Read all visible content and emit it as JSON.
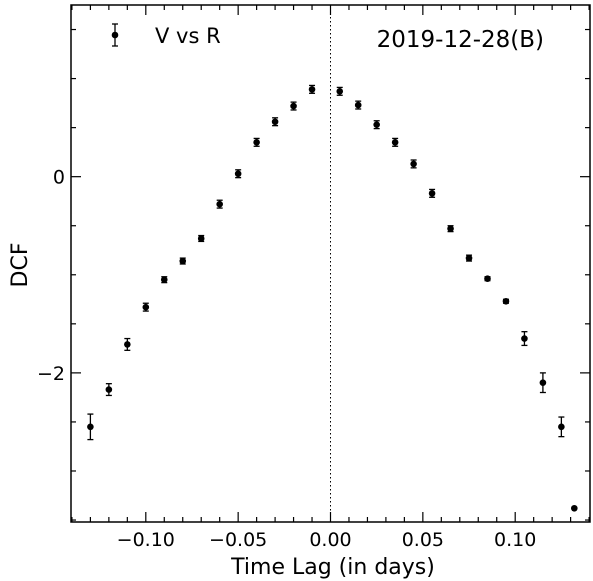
{
  "chart_data": {
    "type": "scatter",
    "xlabel": "Time Lag (in days)",
    "ylabel": "DCF",
    "annotation": "2019-12-28(B)",
    "legend_position": "top-left",
    "xlim": [
      -0.1405,
      0.1405
    ],
    "ylim": [
      -3.52,
      1.75
    ],
    "x_ticks": [
      -0.1,
      -0.05,
      0.0,
      0.05,
      0.1
    ],
    "x_tick_labels": [
      "−0.10",
      "−0.05",
      "0.00",
      "0.05",
      "0.10"
    ],
    "y_ticks": [
      -2,
      0
    ],
    "y_tick_labels": [
      "−2",
      "0"
    ],
    "reference_line_x": 0.0,
    "grid": false,
    "series": [
      {
        "name": "V vs R",
        "color": "#000000",
        "points": [
          {
            "x": -0.13,
            "y": -2.55,
            "err": 0.13
          },
          {
            "x": -0.12,
            "y": -2.17,
            "err": 0.06
          },
          {
            "x": -0.11,
            "y": -1.71,
            "err": 0.06
          },
          {
            "x": -0.1,
            "y": -1.33,
            "err": 0.04
          },
          {
            "x": -0.09,
            "y": -1.05,
            "err": 0.03
          },
          {
            "x": -0.08,
            "y": -0.86,
            "err": 0.03
          },
          {
            "x": -0.07,
            "y": -0.63,
            "err": 0.03
          },
          {
            "x": -0.06,
            "y": -0.28,
            "err": 0.04
          },
          {
            "x": -0.05,
            "y": 0.03,
            "err": 0.04
          },
          {
            "x": -0.04,
            "y": 0.35,
            "err": 0.04
          },
          {
            "x": -0.03,
            "y": 0.56,
            "err": 0.04
          },
          {
            "x": -0.02,
            "y": 0.72,
            "err": 0.04
          },
          {
            "x": -0.01,
            "y": 0.89,
            "err": 0.04
          },
          {
            "x": 0.005,
            "y": 0.87,
            "err": 0.04
          },
          {
            "x": 0.015,
            "y": 0.73,
            "err": 0.04
          },
          {
            "x": 0.025,
            "y": 0.53,
            "err": 0.04
          },
          {
            "x": 0.035,
            "y": 0.35,
            "err": 0.04
          },
          {
            "x": 0.045,
            "y": 0.13,
            "err": 0.04
          },
          {
            "x": 0.055,
            "y": -0.17,
            "err": 0.04
          },
          {
            "x": 0.065,
            "y": -0.53,
            "err": 0.03
          },
          {
            "x": 0.075,
            "y": -0.83,
            "err": 0.03
          },
          {
            "x": 0.085,
            "y": -1.04,
            "err": 0.02
          },
          {
            "x": 0.095,
            "y": -1.27,
            "err": 0.02
          },
          {
            "x": 0.105,
            "y": -1.65,
            "err": 0.07
          },
          {
            "x": 0.115,
            "y": -2.1,
            "err": 0.1
          },
          {
            "x": 0.125,
            "y": -2.55,
            "err": 0.1
          },
          {
            "x": 0.132,
            "y": -3.38,
            "err": 0.0
          }
        ]
      }
    ]
  }
}
